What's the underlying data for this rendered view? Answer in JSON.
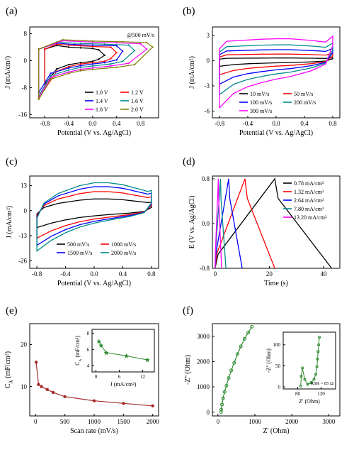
{
  "chart_data": [
    {
      "panel": "(a)",
      "type": "line",
      "annotation": "@500 mV/s",
      "xlabel": "Potential (V vs. Ag/AgCl)",
      "ylabel": "J (mA/cm²)",
      "xlim": [
        -1.05,
        1.1
      ],
      "ylim": [
        -17,
        10
      ],
      "xticks": [
        "-0.8",
        "-0.4",
        "0.0",
        "0.4",
        "0.8"
      ],
      "xtick_values": [
        -0.8,
        -0.4,
        0.0,
        0.4,
        0.8
      ],
      "yticks": [
        "-16",
        "-8",
        "0",
        "8"
      ],
      "ytick_values": [
        -16,
        -8,
        0,
        8
      ],
      "legend_position": "lower-right",
      "series": [
        {
          "name": "1.0 V",
          "color": "#000000",
          "vmin": -0.8,
          "vmax": 0.2,
          "points": [
            [
              -0.8,
              -7
            ],
            [
              -0.6,
              -2.5
            ],
            [
              -0.4,
              -1.2
            ],
            [
              -0.2,
              -0.6
            ],
            [
              0.0,
              -0.2
            ],
            [
              0.1,
              0.4
            ],
            [
              0.2,
              1.6
            ],
            [
              0.1,
              3.2
            ],
            [
              0.0,
              3.6
            ],
            [
              -0.2,
              3.8
            ],
            [
              -0.4,
              4.0
            ],
            [
              -0.6,
              4.5
            ],
            [
              -0.8,
              3.4
            ]
          ]
        },
        {
          "name": "1.2 V",
          "color": "#ff0000",
          "vmin": -0.8,
          "vmax": 0.4,
          "points": [
            [
              -0.8,
              -8.5
            ],
            [
              -0.6,
              -3.2
            ],
            [
              -0.4,
              -1.8
            ],
            [
              -0.2,
              -1.0
            ],
            [
              0.0,
              -0.6
            ],
            [
              0.2,
              -0.2
            ],
            [
              0.3,
              0.6
            ],
            [
              0.4,
              2.4
            ],
            [
              0.3,
              4.0
            ],
            [
              0.0,
              4.2
            ],
            [
              -0.2,
              4.4
            ],
            [
              -0.4,
              4.6
            ],
            [
              -0.6,
              4.9
            ],
            [
              -0.8,
              3.4
            ]
          ]
        },
        {
          "name": "1.4 V",
          "color": "#0000ff",
          "vmin": -0.9,
          "vmax": 0.5,
          "points": [
            [
              -0.9,
              -9.5
            ],
            [
              -0.7,
              -3.8
            ],
            [
              -0.4,
              -2.2
            ],
            [
              -0.2,
              -1.5
            ],
            [
              0.0,
              -1.0
            ],
            [
              0.2,
              -0.6
            ],
            [
              0.4,
              0.2
            ],
            [
              0.5,
              2.8
            ],
            [
              0.4,
              4.4
            ],
            [
              0.0,
              4.6
            ],
            [
              -0.3,
              4.8
            ],
            [
              -0.6,
              5.2
            ],
            [
              -0.9,
              3.4
            ]
          ]
        },
        {
          "name": "1.6 V",
          "color": "#008b8b",
          "vmin": -0.9,
          "vmax": 0.7,
          "points": [
            [
              -0.9,
              -10.5
            ],
            [
              -0.7,
              -4.5
            ],
            [
              -0.4,
              -2.8
            ],
            [
              -0.2,
              -2.0
            ],
            [
              0.0,
              -1.6
            ],
            [
              0.3,
              -1.0
            ],
            [
              0.5,
              -0.2
            ],
            [
              0.7,
              3.0
            ],
            [
              0.6,
              4.6
            ],
            [
              0.2,
              4.9
            ],
            [
              -0.2,
              5.1
            ],
            [
              -0.6,
              5.5
            ],
            [
              -0.9,
              3.4
            ]
          ]
        },
        {
          "name": "1.8 V",
          "color": "#ff00ff",
          "vmin": -0.9,
          "vmax": 0.9,
          "points": [
            [
              -0.9,
              -11
            ],
            [
              -0.7,
              -5
            ],
            [
              -0.4,
              -3.4
            ],
            [
              -0.2,
              -2.6
            ],
            [
              0.0,
              -2.2
            ],
            [
              0.3,
              -1.6
            ],
            [
              0.6,
              -0.8
            ],
            [
              0.9,
              3.4
            ],
            [
              0.8,
              5.0
            ],
            [
              0.4,
              5.3
            ],
            [
              0.0,
              5.5
            ],
            [
              -0.5,
              5.9
            ],
            [
              -0.9,
              3.4
            ]
          ]
        },
        {
          "name": "2.0 V",
          "color": "#808000",
          "vmin": -0.9,
          "vmax": 1.0,
          "points": [
            [
              -0.9,
              -11.5
            ],
            [
              -0.7,
              -5.5
            ],
            [
              -0.4,
              -3.8
            ],
            [
              -0.2,
              -3.0
            ],
            [
              0.0,
              -2.6
            ],
            [
              0.4,
              -2.0
            ],
            [
              0.7,
              -1.2
            ],
            [
              1.0,
              4.0
            ],
            [
              0.9,
              5.4
            ],
            [
              0.5,
              5.6
            ],
            [
              0.0,
              5.8
            ],
            [
              -0.5,
              6.2
            ],
            [
              -0.9,
              3.4
            ]
          ]
        }
      ]
    },
    {
      "panel": "(b)",
      "type": "line",
      "xlabel": "Potential (V vs. Ag/AgCl)",
      "ylabel": "J (mA/cm²)",
      "xlim": [
        -0.9,
        0.9
      ],
      "ylim": [
        -6.8,
        4
      ],
      "xticks": [
        "-0.8",
        "-0.4",
        "0.0",
        "0.4",
        "0.8"
      ],
      "xtick_values": [
        -0.8,
        -0.4,
        0.0,
        0.4,
        0.8
      ],
      "yticks": [
        "-6",
        "-3",
        "0",
        "3"
      ],
      "ytick_values": [
        -6,
        -3,
        0,
        3
      ],
      "legend_position": "bottom",
      "series": [
        {
          "name": "10 mV/s",
          "color": "#000000",
          "scale": 0.12
        },
        {
          "name": "50 mV/s",
          "color": "#ff0000",
          "scale": 0.3
        },
        {
          "name": "100 mV/s",
          "color": "#0000ff",
          "scale": 0.5
        },
        {
          "name": "200 mV/s",
          "color": "#008b8b",
          "scale": 0.72
        },
        {
          "name": "300 mV/s",
          "color": "#ff00ff",
          "scale": 1.0
        }
      ],
      "shape": {
        "anodic": [
          [
            -0.8,
            1.4
          ],
          [
            -0.7,
            2.3
          ],
          [
            -0.5,
            2.4
          ],
          [
            -0.2,
            2.55
          ],
          [
            0.0,
            2.6
          ],
          [
            0.2,
            2.6
          ],
          [
            0.5,
            2.4
          ],
          [
            0.7,
            2.2
          ],
          [
            0.8,
            2.9
          ]
        ],
        "cathodic": [
          [
            0.8,
            1.8
          ],
          [
            0.7,
            -0.4
          ],
          [
            0.5,
            -1.2
          ],
          [
            0.2,
            -1.9
          ],
          [
            0.0,
            -2.2
          ],
          [
            -0.2,
            -2.6
          ],
          [
            -0.4,
            -3.1
          ],
          [
            -0.6,
            -3.9
          ],
          [
            -0.8,
            -5.6
          ]
        ]
      }
    },
    {
      "panel": "(c)",
      "type": "line",
      "xlabel": "Potential (V vs. Ag/AgCl)",
      "ylabel": "J (mA/cm²)",
      "xlim": [
        -0.9,
        0.9
      ],
      "ylim": [
        -30,
        18
      ],
      "xticks": [
        "-0.8",
        "-0.4",
        "0.0",
        "0.4",
        "0.8"
      ],
      "xtick_values": [
        -0.8,
        -0.4,
        0.0,
        0.4,
        0.8
      ],
      "yticks": [
        "-26",
        "-13",
        "0",
        "13"
      ],
      "ytick_values": [
        -26,
        -13,
        0,
        13
      ],
      "legend_position": "bottom",
      "series": [
        {
          "name": "500 mV/s",
          "color": "#000000",
          "scale": 0.42
        },
        {
          "name": "1000 mV/s",
          "color": "#ff0000",
          "scale": 0.68
        },
        {
          "name": "1500 mV/s",
          "color": "#0000ff",
          "scale": 0.86
        },
        {
          "name": "2000 mV/s",
          "color": "#008b8b",
          "scale": 1.0
        }
      ],
      "shape": {
        "anodic": [
          [
            -0.8,
            -4
          ],
          [
            -0.7,
            4
          ],
          [
            -0.5,
            9
          ],
          [
            -0.2,
            13
          ],
          [
            0.0,
            14.5
          ],
          [
            0.2,
            14.5
          ],
          [
            0.4,
            13.5
          ],
          [
            0.6,
            11.5
          ],
          [
            0.75,
            10
          ],
          [
            0.8,
            10.5
          ]
        ],
        "cathodic": [
          [
            0.8,
            4
          ],
          [
            0.7,
            -1
          ],
          [
            0.5,
            -3
          ],
          [
            0.2,
            -5
          ],
          [
            0.0,
            -6.5
          ],
          [
            -0.2,
            -8.5
          ],
          [
            -0.4,
            -11.5
          ],
          [
            -0.6,
            -15.5
          ],
          [
            -0.8,
            -21
          ]
        ]
      }
    },
    {
      "panel": "(d)",
      "type": "line",
      "xlabel": "Time (s)",
      "ylabel": "E (V vs. Ag/AgCl)",
      "xlim": [
        -1,
        46
      ],
      "ylim": [
        -0.8,
        0.85
      ],
      "xticks": [
        "0",
        "20",
        "40"
      ],
      "xtick_values": [
        0,
        20,
        40
      ],
      "yticks": [
        "-0.8",
        "0.0",
        "0.8"
      ],
      "ytick_values": [
        -0.8,
        0.0,
        0.8
      ],
      "legend_position": "top-right",
      "series": [
        {
          "name": "0.78 mA/cm²",
          "color": "#000000",
          "t_charge": 22,
          "t_total": 43
        },
        {
          "name": "1.32 mA/cm²",
          "color": "#ff0000",
          "t_charge": 11,
          "t_total": 22
        },
        {
          "name": "2.64 mA/cm²",
          "color": "#0000ff",
          "t_charge": 5,
          "t_total": 10
        },
        {
          "name": "7.80 mA/cm²",
          "color": "#008b8b",
          "t_charge": 2,
          "t_total": 4
        },
        {
          "name": "13.20 mA/cm²",
          "color": "#ff00ff",
          "t_charge": 1.2,
          "t_total": 2.4
        }
      ]
    },
    {
      "panel": "(e)",
      "type": "line",
      "xlabel": "Scan rate (mV/s)",
      "ylabel": "C_A (mF/cm²)",
      "ylabel_main": "C",
      "ylabel_sub": "A",
      "ylabel_rest": " (mF/cm²)",
      "xlim": [
        -100,
        2100
      ],
      "ylim": [
        3,
        25
      ],
      "xticks": [
        "0",
        "500",
        "1000",
        "1500",
        "2000"
      ],
      "xtick_values": [
        0,
        500,
        1000,
        1500,
        2000
      ],
      "yticks": [
        "10",
        "20"
      ],
      "ytick_values": [
        10,
        20
      ],
      "color": "#a52a2a",
      "x": [
        10,
        50,
        100,
        200,
        300,
        500,
        1000,
        1500,
        2000
      ],
      "y": [
        15.8,
        10.5,
        10.0,
        9.3,
        8.6,
        7.6,
        6.6,
        6.0,
        5.4
      ],
      "inset": {
        "xlabel": "J (mA/cm²)",
        "ylabel": "C_A (mF/cm²)",
        "ylabel_main": "C",
        "ylabel_sub": "A",
        "ylabel_rest": " (mF/cm²)",
        "xlim": [
          -1,
          15
        ],
        "ylim": [
          3.2,
          8.5
        ],
        "xticks": [
          "0",
          "6",
          "12"
        ],
        "xtick_values": [
          0,
          6,
          12
        ],
        "yticks": [
          "4",
          "6",
          "8"
        ],
        "ytick_values": [
          4,
          6,
          8
        ],
        "color": "#2e8b2e",
        "x": [
          0.78,
          1.32,
          2.64,
          7.8,
          13.2
        ],
        "y": [
          7.0,
          6.5,
          5.6,
          5.2,
          4.7
        ]
      }
    },
    {
      "panel": "(f)",
      "type": "scatter",
      "xlabel": "Z' (Ohm)",
      "ylabel": "-Z'' (Ohm)",
      "xlim": [
        -150,
        3300
      ],
      "ylim": [
        -150,
        3500
      ],
      "xticks": [
        "0",
        "1000",
        "2000",
        "3000"
      ],
      "xtick_values": [
        0,
        1000,
        2000,
        3000
      ],
      "yticks": [
        "0",
        "1000",
        "2000",
        "3000"
      ],
      "ytick_values": [
        0,
        1000,
        2000,
        3000
      ],
      "color": "#2e8b2e",
      "x": [
        85,
        90,
        110,
        140,
        180,
        230,
        290,
        360,
        440,
        530,
        620,
        720,
        820,
        920
      ],
      "y": [
        5,
        100,
        300,
        550,
        800,
        1050,
        1350,
        1650,
        1950,
        2300,
        2600,
        2900,
        3150,
        3380
      ],
      "inset": {
        "xlabel": "Z' (Ohm)",
        "ylabel": "-Z'' (Ohm)",
        "annotation": "RSR = 85 Ω",
        "xlim": [
          55,
          145
        ],
        "ylim": [
          -5,
          130
        ],
        "xticks": [
          "80",
          "120"
        ],
        "xtick_values": [
          80,
          120
        ],
        "yticks": [
          "0",
          "50",
          "100"
        ],
        "ytick_values": [
          0,
          50,
          100
        ],
        "color": "#2e8b2e",
        "x": [
          85,
          86,
          88,
          92,
          97,
          103,
          108,
          111,
          113,
          114,
          115,
          116,
          117
        ],
        "y": [
          2,
          25,
          45,
          18,
          6,
          10,
          18,
          30,
          48,
          66,
          84,
          100,
          118
        ]
      }
    }
  ]
}
